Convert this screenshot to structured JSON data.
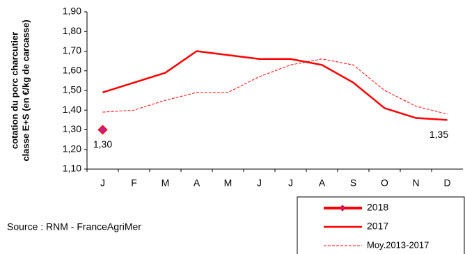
{
  "chart_data": {
    "type": "line",
    "ylabel": [
      "cotation du porc charcutier",
      "classe E+S  (en €/kg de carcasse)"
    ],
    "source": "Source : RNM - FranceAgriMer",
    "categories": [
      "J",
      "F",
      "M",
      "A",
      "M",
      "J",
      "J",
      "A",
      "S",
      "O",
      "N",
      "D"
    ],
    "series": [
      {
        "name": "2018",
        "color": "#ff0000",
        "width": 4,
        "dash": null,
        "marker": "diamond",
        "marker_color": "#c0208a",
        "values": [
          1.3,
          null,
          null,
          null,
          null,
          null,
          null,
          null,
          null,
          null,
          null,
          null
        ],
        "value_labels": [
          "1,30",
          null,
          null,
          null,
          null,
          null,
          null,
          null,
          null,
          null,
          null,
          null
        ]
      },
      {
        "name": "2017",
        "color": "#ff0000",
        "width": 2.5,
        "dash": null,
        "marker": null,
        "values": [
          1.49,
          1.54,
          1.59,
          1.7,
          1.68,
          1.66,
          1.66,
          1.63,
          1.54,
          1.41,
          1.36,
          1.35
        ],
        "value_labels": [
          null,
          null,
          null,
          null,
          null,
          null,
          null,
          null,
          null,
          null,
          null,
          "1,35"
        ]
      },
      {
        "name": "Moy.2013-2017",
        "color": "#ff0000",
        "width": 1,
        "dash": "4,2",
        "marker": null,
        "values": [
          1.39,
          1.4,
          1.45,
          1.49,
          1.49,
          1.57,
          1.63,
          1.66,
          1.63,
          1.5,
          1.42,
          1.38
        ]
      }
    ],
    "ylim": [
      1.1,
      1.9
    ],
    "yticks": [
      {
        "value": 1.1,
        "label": "1,10"
      },
      {
        "value": 1.2,
        "label": "1,20"
      },
      {
        "value": 1.3,
        "label": "1,30"
      },
      {
        "value": 1.4,
        "label": "1,40"
      },
      {
        "value": 1.5,
        "label": "1,50"
      },
      {
        "value": 1.6,
        "label": "1,60"
      },
      {
        "value": 1.7,
        "label": "1,70"
      },
      {
        "value": 1.8,
        "label": "1,80"
      },
      {
        "value": 1.9,
        "label": "1,90"
      }
    ],
    "grid": false
  }
}
